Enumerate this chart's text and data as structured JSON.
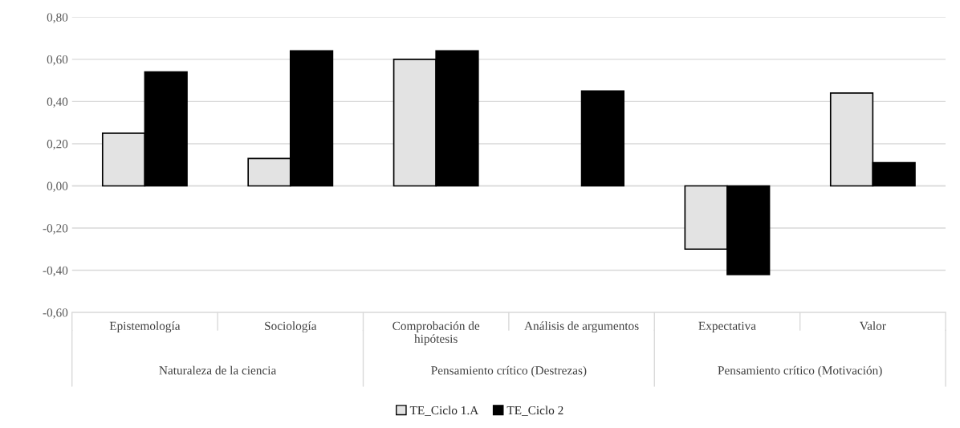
{
  "chart_data": {
    "type": "bar",
    "categories": [
      "Epistemología",
      "Sociología",
      "Comprobación de\nhipótesis",
      "Análisis de argumentos",
      "Expectativa",
      "Valor"
    ],
    "series": [
      {
        "name": "TE_Ciclo 1.A",
        "color": "#e3e3e3",
        "values": [
          0.25,
          0.13,
          0.6,
          null,
          -0.3,
          0.44
        ]
      },
      {
        "name": "TE_Ciclo 2",
        "color": "#000000",
        "values": [
          0.54,
          0.64,
          0.64,
          0.45,
          -0.42,
          0.11
        ]
      }
    ],
    "annotations": [
      "Naturaleza de la ciencia",
      "Pensamiento crítico (Destrezas)",
      "Pensamiento crítico (Motivación)"
    ],
    "ylim": [
      -0.6,
      0.8
    ],
    "yticks": [
      {
        "value": -0.6,
        "label": "-0,60"
      },
      {
        "value": -0.4,
        "label": "-0,40"
      },
      {
        "value": -0.2,
        "label": "-0,20"
      },
      {
        "value": 0,
        "label": "0,00"
      },
      {
        "value": 0.2,
        "label": "0,20"
      },
      {
        "value": 0.4,
        "label": "0,40"
      },
      {
        "value": 0.6,
        "label": "0,60"
      },
      {
        "value": 0.8,
        "label": "0,80"
      }
    ],
    "grid": "y",
    "legend": "bottom"
  }
}
